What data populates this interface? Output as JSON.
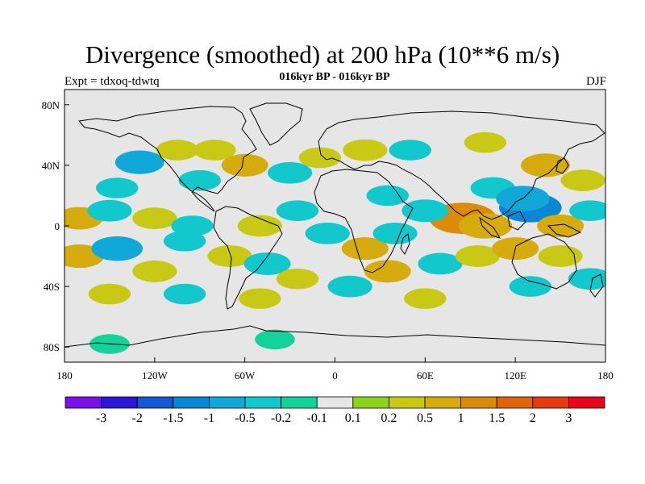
{
  "title": "Divergence (smoothed) at 200 hPa (10**6 m/s)",
  "subtitle": "016kyr BP - 016kyr BP",
  "left_label": "Expt = tdxoq-tdwtq",
  "right_label": "DJF",
  "colors": {
    "background": "#ffffff",
    "missing_land_sea": "#e6e6e6",
    "coastline": "#000000"
  },
  "axes": {
    "x_ticks": [
      {
        "value": -180,
        "label": "180"
      },
      {
        "value": -120,
        "label": "120W"
      },
      {
        "value": -60,
        "label": "60W"
      },
      {
        "value": 0,
        "label": "0"
      },
      {
        "value": 60,
        "label": "60E"
      },
      {
        "value": 120,
        "label": "120E"
      },
      {
        "value": 180,
        "label": "180"
      }
    ],
    "y_ticks": [
      {
        "value": 80,
        "label": "80N"
      },
      {
        "value": 40,
        "label": "40N"
      },
      {
        "value": 0,
        "label": "0"
      },
      {
        "value": -40,
        "label": "40S"
      },
      {
        "value": -80,
        "label": "80S"
      }
    ],
    "xlim": [
      -180,
      180
    ],
    "ylim": [
      -90,
      90
    ]
  },
  "colorbar": {
    "boundaries": [
      "-3",
      "-2",
      "-1.5",
      "-1",
      "-0.5",
      "-0.2",
      "-0.1",
      "0.1",
      "0.2",
      "0.5",
      "1",
      "1.5",
      "2",
      "3"
    ],
    "colors": [
      "#7a11e6",
      "#2a18d6",
      "#1458d4",
      "#0a86d6",
      "#11a8d8",
      "#12c8cc",
      "#13d39a",
      "#e6e6e6",
      "#8cd41c",
      "#c9c814",
      "#d6ab0e",
      "#db8a0a",
      "#e0640c",
      "#e43b10",
      "#e8071a"
    ]
  },
  "chart_data": {
    "type": "heatmap",
    "title": "Divergence (smoothed) at 200 hPa (10**6 m/s)",
    "subtitle": "016kyr BP - 016kyr BP",
    "xlim": [
      -180,
      180
    ],
    "ylim": [
      -90,
      90
    ],
    "levels": [
      -3,
      -2,
      -1.5,
      -1,
      -0.5,
      -0.2,
      -0.1,
      0.1,
      0.2,
      0.5,
      1,
      1.5,
      2,
      3
    ],
    "blobs": [
      {
        "lon": -130,
        "lat": 42,
        "value": -0.6
      },
      {
        "lon": -145,
        "lat": 25,
        "value": -0.3
      },
      {
        "lon": -105,
        "lat": 50,
        "value": 0.3
      },
      {
        "lon": -90,
        "lat": 30,
        "value": -0.3
      },
      {
        "lon": -80,
        "lat": 50,
        "value": 0.3
      },
      {
        "lon": -60,
        "lat": 40,
        "value": 0.5
      },
      {
        "lon": -30,
        "lat": 35,
        "value": -0.4
      },
      {
        "lon": -10,
        "lat": 45,
        "value": 0.3
      },
      {
        "lon": 20,
        "lat": 50,
        "value": 0.4
      },
      {
        "lon": 50,
        "lat": 50,
        "value": -0.3
      },
      {
        "lon": 100,
        "lat": 55,
        "value": 0.3
      },
      {
        "lon": 140,
        "lat": 40,
        "value": 0.6
      },
      {
        "lon": 165,
        "lat": 30,
        "value": 0.4
      },
      {
        "lon": 105,
        "lat": 25,
        "value": -0.4
      },
      {
        "lon": 130,
        "lat": 12,
        "value": -1.2
      },
      {
        "lon": 125,
        "lat": 18,
        "value": -0.8
      },
      {
        "lon": 85,
        "lat": 5,
        "value": 1.4
      },
      {
        "lon": 100,
        "lat": 0,
        "value": 0.8
      },
      {
        "lon": 60,
        "lat": 10,
        "value": -0.5
      },
      {
        "lon": 35,
        "lat": 20,
        "value": -0.3
      },
      {
        "lon": 150,
        "lat": 0,
        "value": 0.5
      },
      {
        "lon": 170,
        "lat": 10,
        "value": -0.3
      },
      {
        "lon": -170,
        "lat": 5,
        "value": 0.5
      },
      {
        "lon": -150,
        "lat": 10,
        "value": -0.4
      },
      {
        "lon": -120,
        "lat": 5,
        "value": 0.4
      },
      {
        "lon": -95,
        "lat": 0,
        "value": -0.3
      },
      {
        "lon": -50,
        "lat": 0,
        "value": 0.4
      },
      {
        "lon": -25,
        "lat": 10,
        "value": -0.3
      },
      {
        "lon": -5,
        "lat": -5,
        "value": -0.4
      },
      {
        "lon": 20,
        "lat": -15,
        "value": 0.5
      },
      {
        "lon": 40,
        "lat": -5,
        "value": -0.4
      },
      {
        "lon": -170,
        "lat": -20,
        "value": 0.6
      },
      {
        "lon": -145,
        "lat": -15,
        "value": -0.7
      },
      {
        "lon": -120,
        "lat": -30,
        "value": 0.4
      },
      {
        "lon": -100,
        "lat": -10,
        "value": -0.3
      },
      {
        "lon": -70,
        "lat": -20,
        "value": 0.4
      },
      {
        "lon": -45,
        "lat": -25,
        "value": -0.5
      },
      {
        "lon": -25,
        "lat": -35,
        "value": 0.3
      },
      {
        "lon": 10,
        "lat": -40,
        "value": -0.4
      },
      {
        "lon": 35,
        "lat": -30,
        "value": 0.5
      },
      {
        "lon": 70,
        "lat": -25,
        "value": -0.4
      },
      {
        "lon": 95,
        "lat": -20,
        "value": 0.4
      },
      {
        "lon": 120,
        "lat": -15,
        "value": 0.5
      },
      {
        "lon": 150,
        "lat": -20,
        "value": 0.4
      },
      {
        "lon": 170,
        "lat": -35,
        "value": -0.4
      },
      {
        "lon": 130,
        "lat": -40,
        "value": -0.3
      },
      {
        "lon": -150,
        "lat": -45,
        "value": 0.3
      },
      {
        "lon": -100,
        "lat": -45,
        "value": -0.3
      },
      {
        "lon": -50,
        "lat": -48,
        "value": 0.3
      },
      {
        "lon": 60,
        "lat": -48,
        "value": 0.3
      },
      {
        "lon": -150,
        "lat": -78,
        "value": -0.2
      },
      {
        "lon": -40,
        "lat": -75,
        "value": -0.2
      }
    ]
  }
}
